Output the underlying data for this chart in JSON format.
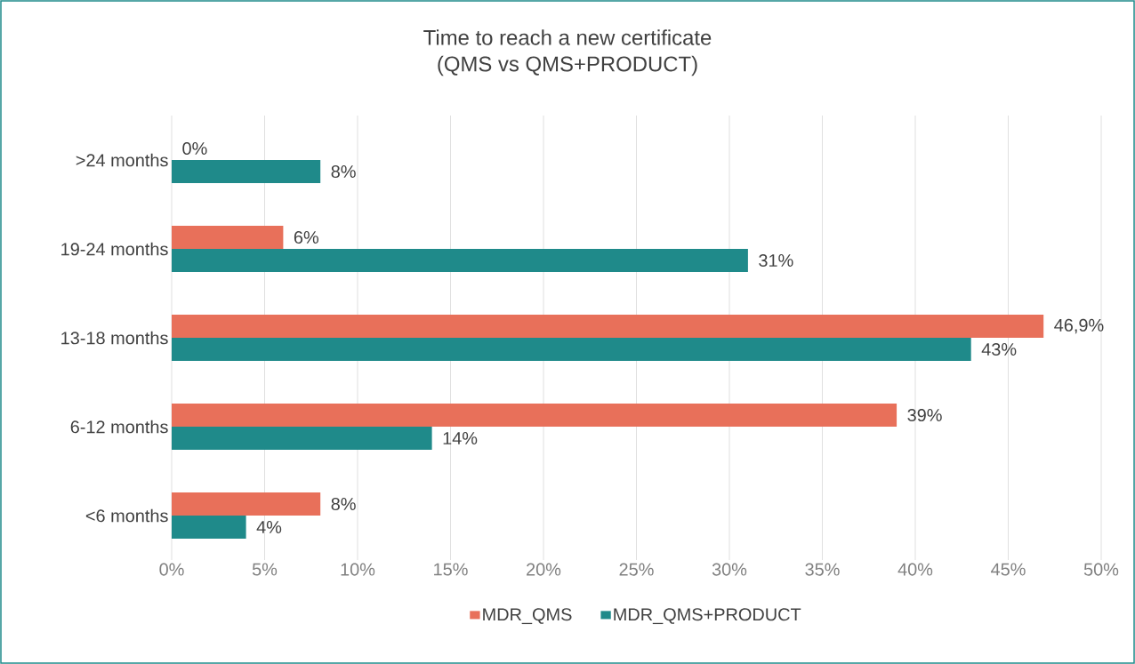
{
  "chart_data": {
    "type": "bar",
    "orientation": "horizontal",
    "title": "Time to reach a new certificate",
    "subtitle": "(QMS vs QMS+PRODUCT)",
    "categories": [
      ">24 months",
      "19-24 months",
      "13-18 months",
      "6-12 months",
      "<6 months"
    ],
    "series": [
      {
        "name": "MDR_QMS",
        "color": "#e8705a",
        "values": [
          0,
          6,
          46.9,
          39,
          8
        ],
        "value_labels": [
          "0%",
          "6%",
          "46,9%",
          "39%",
          "8%"
        ]
      },
      {
        "name": "MDR_QMS+PRODUCT",
        "color": "#1f8a8a",
        "values": [
          8,
          31,
          43,
          14,
          4
        ],
        "value_labels": [
          "8%",
          "31%",
          "43%",
          "14%",
          "4%"
        ]
      }
    ],
    "xlim": [
      0,
      50
    ],
    "xticks": [
      {
        "value": 0,
        "label": "0%"
      },
      {
        "value": 5,
        "label": "5%"
      },
      {
        "value": 10,
        "label": "10%"
      },
      {
        "value": 15,
        "label": "15%"
      },
      {
        "value": 20,
        "label": "20%"
      },
      {
        "value": 25,
        "label": "25%"
      },
      {
        "value": 30,
        "label": "30%"
      },
      {
        "value": 35,
        "label": "35%"
      },
      {
        "value": 40,
        "label": "40%"
      },
      {
        "value": 45,
        "label": "45%"
      },
      {
        "value": 50,
        "label": "50%"
      }
    ],
    "grid": "x",
    "legend": "bottom"
  }
}
